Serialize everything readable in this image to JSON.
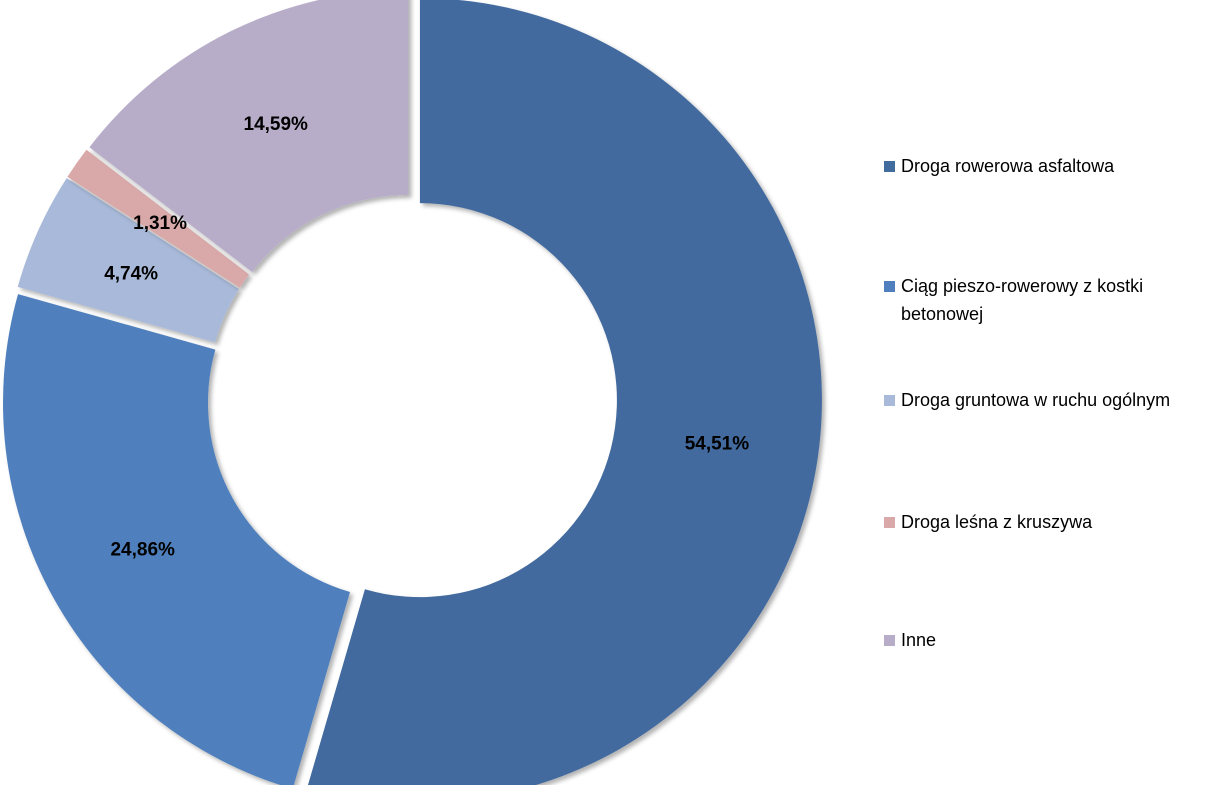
{
  "chart_data": {
    "type": "pie",
    "variant": "donut-exploded",
    "categories": [
      "Droga rowerowa asfaltowa",
      "Ciąg pieszo-rowerowy z kostki betonowej",
      "Droga gruntowa w ruchu ogólnym",
      "Droga leśna z kruszywa",
      "Inne"
    ],
    "values": [
      54.51,
      24.86,
      4.74,
      1.31,
      14.59
    ],
    "data_labels": [
      "54,51%",
      "24,86%",
      "4,74%",
      "1,31%",
      "14,59%"
    ],
    "colors": [
      "#426B9E",
      "#4F80BD",
      "#A8B9D9",
      "#D9A8A8",
      "#B8ADC9"
    ],
    "legend_position": "right",
    "title": ""
  }
}
